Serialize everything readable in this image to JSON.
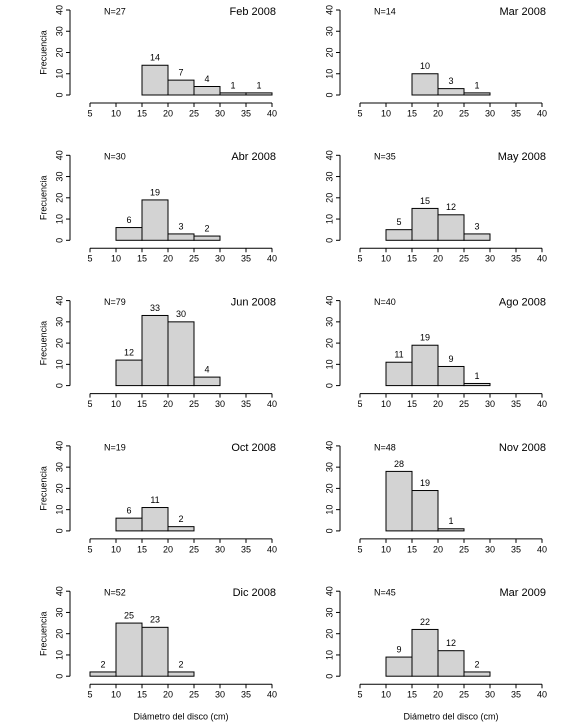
{
  "chart_data": [
    {
      "type": "histogram",
      "title": "Feb 2008",
      "annotation": "N=27",
      "ylabel": "Frecuencia",
      "bins": [
        15,
        20,
        25,
        30,
        35,
        40
      ],
      "values": [
        14,
        7,
        4,
        1,
        1
      ],
      "color": "#d3d3d3",
      "xlim": [
        5,
        40
      ],
      "xticks": [
        5,
        10,
        15,
        20,
        25,
        30,
        35,
        40
      ],
      "ylim": [
        0,
        40
      ],
      "yticks": [
        0,
        10,
        20,
        30,
        40
      ]
    },
    {
      "type": "histogram",
      "title": "Mar 2008",
      "annotation": "N=14",
      "bins": [
        15,
        20,
        25,
        30
      ],
      "values": [
        10,
        3,
        1
      ],
      "color": "#d3d3d3",
      "xlim": [
        5,
        40
      ],
      "xticks": [
        5,
        10,
        15,
        20,
        25,
        30,
        35,
        40
      ],
      "ylim": [
        0,
        40
      ],
      "yticks": [
        0,
        10,
        20,
        30,
        40
      ]
    },
    {
      "type": "histogram",
      "title": "Abr 2008",
      "annotation": "N=30",
      "ylabel": "Frecuencia",
      "bins": [
        10,
        15,
        20,
        25,
        30
      ],
      "values": [
        6,
        19,
        3,
        2
      ],
      "color": "#d3d3d3",
      "xlim": [
        5,
        40
      ],
      "xticks": [
        5,
        10,
        15,
        20,
        25,
        30,
        35,
        40
      ],
      "ylim": [
        0,
        40
      ],
      "yticks": [
        0,
        10,
        20,
        30,
        40
      ]
    },
    {
      "type": "histogram",
      "title": "May 2008",
      "annotation": "N=35",
      "bins": [
        10,
        15,
        20,
        25,
        30
      ],
      "values": [
        5,
        15,
        12,
        3
      ],
      "color": "#d3d3d3",
      "xlim": [
        5,
        40
      ],
      "xticks": [
        5,
        10,
        15,
        20,
        25,
        30,
        35,
        40
      ],
      "ylim": [
        0,
        40
      ],
      "yticks": [
        0,
        10,
        20,
        30,
        40
      ]
    },
    {
      "type": "histogram",
      "title": "Jun 2008",
      "annotation": "N=79",
      "ylabel": "Frecuencia",
      "bins": [
        10,
        15,
        20,
        25,
        30
      ],
      "values": [
        12,
        33,
        30,
        4
      ],
      "color": "#d3d3d3",
      "xlim": [
        5,
        40
      ],
      "xticks": [
        5,
        10,
        15,
        20,
        25,
        30,
        35,
        40
      ],
      "ylim": [
        0,
        40
      ],
      "yticks": [
        0,
        10,
        20,
        30,
        40
      ]
    },
    {
      "type": "histogram",
      "title": "Ago 2008",
      "annotation": "N=40",
      "bins": [
        10,
        15,
        20,
        25,
        30
      ],
      "values": [
        11,
        19,
        9,
        1
      ],
      "color": "#d3d3d3",
      "xlim": [
        5,
        40
      ],
      "xticks": [
        5,
        10,
        15,
        20,
        25,
        30,
        35,
        40
      ],
      "ylim": [
        0,
        40
      ],
      "yticks": [
        0,
        10,
        20,
        30,
        40
      ]
    },
    {
      "type": "histogram",
      "title": "Oct 2008",
      "annotation": "N=19",
      "ylabel": "Frecuencia",
      "bins": [
        10,
        15,
        20,
        25
      ],
      "values": [
        6,
        11,
        2
      ],
      "color": "#d3d3d3",
      "xlim": [
        5,
        40
      ],
      "xticks": [
        5,
        10,
        15,
        20,
        25,
        30,
        35,
        40
      ],
      "ylim": [
        0,
        40
      ],
      "yticks": [
        0,
        10,
        20,
        30,
        40
      ]
    },
    {
      "type": "histogram",
      "title": "Nov 2008",
      "annotation": "N=48",
      "bins": [
        10,
        15,
        20,
        25
      ],
      "values": [
        28,
        19,
        1
      ],
      "color": "#d3d3d3",
      "xlim": [
        5,
        40
      ],
      "xticks": [
        5,
        10,
        15,
        20,
        25,
        30,
        35,
        40
      ],
      "ylim": [
        0,
        40
      ],
      "yticks": [
        0,
        10,
        20,
        30,
        40
      ]
    },
    {
      "type": "histogram",
      "title": "Dic 2008",
      "annotation": "N=52",
      "ylabel": "Frecuencia",
      "xlabel": "Diámetro del disco (cm)",
      "bins": [
        5,
        10,
        15,
        20,
        25
      ],
      "values": [
        2,
        25,
        23,
        2
      ],
      "color": "#d3d3d3",
      "xlim": [
        5,
        40
      ],
      "xticks": [
        5,
        10,
        15,
        20,
        25,
        30,
        35,
        40
      ],
      "ylim": [
        0,
        40
      ],
      "yticks": [
        0,
        10,
        20,
        30,
        40
      ]
    },
    {
      "type": "histogram",
      "title": "Mar 2009",
      "annotation": "N=45",
      "xlabel": "Diámetro del disco (cm)",
      "bins": [
        10,
        15,
        20,
        25,
        30
      ],
      "values": [
        9,
        22,
        12,
        2
      ],
      "color": "#d3d3d3",
      "xlim": [
        5,
        40
      ],
      "xticks": [
        5,
        10,
        15,
        20,
        25,
        30,
        35,
        40
      ],
      "ylim": [
        0,
        40
      ],
      "yticks": [
        0,
        10,
        20,
        30,
        40
      ]
    }
  ]
}
